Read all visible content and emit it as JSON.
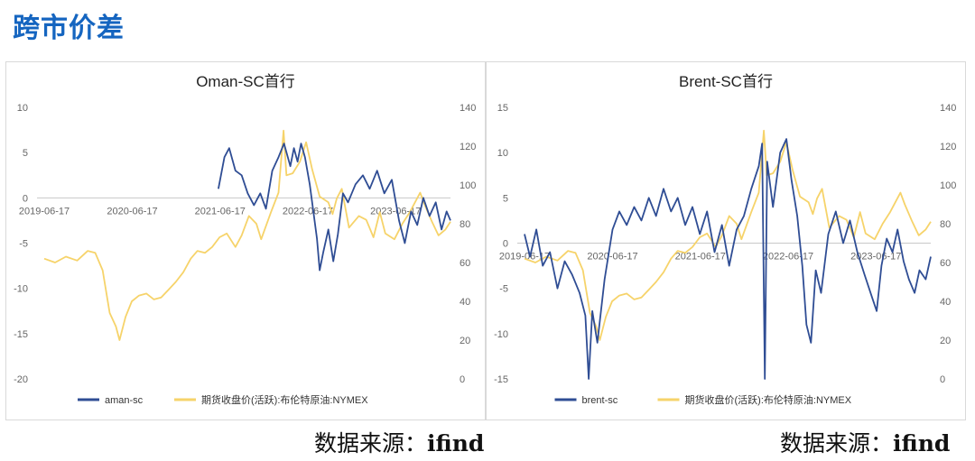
{
  "page": {
    "title": "跨市价差"
  },
  "source": {
    "label": "数据来源：",
    "value": "ifind"
  },
  "chart_data": [
    {
      "type": "line",
      "title": "Oman-SC首行",
      "left_axis": {
        "min": -20,
        "max": 10,
        "ticks": [
          "10",
          "5",
          "0",
          "-5",
          "-10",
          "-15",
          "-20"
        ]
      },
      "right_axis": {
        "min": 0,
        "max": 140,
        "ticks": [
          "140",
          "120",
          "100",
          "80",
          "60",
          "40",
          "20",
          "0"
        ]
      },
      "x_axis": {
        "start": "2019-06-17",
        "end": "2024-01-31",
        "ticks": [
          "2019-06-17",
          "2020-06-17",
          "2021-06-17",
          "2022-06-17",
          "2023-06-17"
        ]
      },
      "series": [
        {
          "name": "aman-sc",
          "axis": "left",
          "color": "#2f4d94",
          "points": [
            [
              "2021-06-10",
              1.0
            ],
            [
              "2021-07-05",
              4.5
            ],
            [
              "2021-07-25",
              5.5
            ],
            [
              "2021-08-20",
              3.0
            ],
            [
              "2021-09-15",
              2.5
            ],
            [
              "2021-10-10",
              0.5
            ],
            [
              "2021-11-05",
              -0.8
            ],
            [
              "2021-12-01",
              0.5
            ],
            [
              "2021-12-25",
              -1.2
            ],
            [
              "2022-01-20",
              3.0
            ],
            [
              "2022-02-15",
              4.5
            ],
            [
              "2022-03-10",
              6.0
            ],
            [
              "2022-04-05",
              3.5
            ],
            [
              "2022-04-20",
              5.5
            ],
            [
              "2022-05-05",
              4.0
            ],
            [
              "2022-05-20",
              6.0
            ],
            [
              "2022-06-05",
              4.5
            ],
            [
              "2022-06-25",
              1.5
            ],
            [
              "2022-07-10",
              -1.5
            ],
            [
              "2022-07-25",
              -4.5
            ],
            [
              "2022-08-05",
              -8.0
            ],
            [
              "2022-08-20",
              -6.0
            ],
            [
              "2022-09-10",
              -3.5
            ],
            [
              "2022-10-01",
              -7.0
            ],
            [
              "2022-10-20",
              -4.0
            ],
            [
              "2022-11-10",
              0.5
            ],
            [
              "2022-12-01",
              -0.5
            ],
            [
              "2023-01-01",
              1.5
            ],
            [
              "2023-02-01",
              2.5
            ],
            [
              "2023-03-01",
              1.0
            ],
            [
              "2023-04-01",
              3.0
            ],
            [
              "2023-05-01",
              0.5
            ],
            [
              "2023-06-01",
              2.0
            ],
            [
              "2023-07-01",
              -2.5
            ],
            [
              "2023-07-25",
              -5.0
            ],
            [
              "2023-08-20",
              -1.5
            ],
            [
              "2023-09-15",
              -3.0
            ],
            [
              "2023-10-10",
              0.0
            ],
            [
              "2023-11-05",
              -2.0
            ],
            [
              "2023-12-01",
              -0.5
            ],
            [
              "2023-12-25",
              -3.5
            ],
            [
              "2024-01-15",
              -1.5
            ],
            [
              "2024-01-31",
              -2.5
            ]
          ]
        },
        {
          "name": "期货收盘价(活跃):布伦特原油:NYMEX",
          "axis": "right",
          "color": "#f6d36a",
          "points": [
            [
              "2019-06-17",
              62
            ],
            [
              "2019-08-01",
              60
            ],
            [
              "2019-09-15",
              63
            ],
            [
              "2019-11-01",
              61
            ],
            [
              "2019-12-15",
              66
            ],
            [
              "2020-01-15",
              65
            ],
            [
              "2020-02-15",
              56
            ],
            [
              "2020-03-15",
              34
            ],
            [
              "2020-04-10",
              27
            ],
            [
              "2020-04-25",
              20
            ],
            [
              "2020-05-20",
              32
            ],
            [
              "2020-06-15",
              40
            ],
            [
              "2020-07-15",
              43
            ],
            [
              "2020-08-15",
              44
            ],
            [
              "2020-09-15",
              41
            ],
            [
              "2020-10-15",
              42
            ],
            [
              "2020-11-15",
              46
            ],
            [
              "2020-12-15",
              50
            ],
            [
              "2021-01-15",
              55
            ],
            [
              "2021-02-15",
              62
            ],
            [
              "2021-03-15",
              66
            ],
            [
              "2021-04-15",
              65
            ],
            [
              "2021-05-15",
              68
            ],
            [
              "2021-06-15",
              73
            ],
            [
              "2021-07-15",
              75
            ],
            [
              "2021-08-20",
              68
            ],
            [
              "2021-09-15",
              74
            ],
            [
              "2021-10-15",
              84
            ],
            [
              "2021-11-15",
              80
            ],
            [
              "2021-12-05",
              72
            ],
            [
              "2022-01-15",
              86
            ],
            [
              "2022-02-15",
              96
            ],
            [
              "2022-03-08",
              128
            ],
            [
              "2022-03-20",
              105
            ],
            [
              "2022-04-15",
              106
            ],
            [
              "2022-05-15",
              112
            ],
            [
              "2022-06-10",
              122
            ],
            [
              "2022-07-05",
              108
            ],
            [
              "2022-08-05",
              94
            ],
            [
              "2022-09-10",
              91
            ],
            [
              "2022-09-28",
              85
            ],
            [
              "2022-10-15",
              93
            ],
            [
              "2022-11-05",
              98
            ],
            [
              "2022-12-05",
              78
            ],
            [
              "2023-01-15",
              84
            ],
            [
              "2023-02-15",
              82
            ],
            [
              "2023-03-17",
              73
            ],
            [
              "2023-04-12",
              86
            ],
            [
              "2023-05-05",
              75
            ],
            [
              "2023-06-12",
              72
            ],
            [
              "2023-07-15",
              80
            ],
            [
              "2023-08-15",
              86
            ],
            [
              "2023-09-27",
              96
            ],
            [
              "2023-10-15",
              90
            ],
            [
              "2023-11-15",
              81
            ],
            [
              "2023-12-12",
              74
            ],
            [
              "2024-01-10",
              77
            ],
            [
              "2024-01-31",
              81
            ]
          ]
        }
      ],
      "legend": "bottom"
    },
    {
      "type": "line",
      "title": "Brent-SC首行",
      "left_axis": {
        "min": -15,
        "max": 15,
        "ticks": [
          "15",
          "10",
          "5",
          "0",
          "-5",
          "-10",
          "-15"
        ]
      },
      "right_axis": {
        "min": 0,
        "max": 140,
        "ticks": [
          "140",
          "120",
          "100",
          "80",
          "60",
          "40",
          "20",
          "0"
        ]
      },
      "x_axis": {
        "start": "2019-06-17",
        "end": "2024-01-31",
        "ticks": [
          "2019-06-17",
          "2020-06-17",
          "2021-06-17",
          "2022-06-17",
          "2023-06-17"
        ]
      },
      "series": [
        {
          "name": "brent-sc",
          "axis": "left",
          "color": "#2f4d94",
          "points": [
            [
              "2019-06-17",
              1.0
            ],
            [
              "2019-07-10",
              -1.5
            ],
            [
              "2019-08-05",
              1.5
            ],
            [
              "2019-09-01",
              -2.5
            ],
            [
              "2019-10-01",
              -1.0
            ],
            [
              "2019-11-01",
              -5.0
            ],
            [
              "2019-12-01",
              -2.0
            ],
            [
              "2020-01-01",
              -3.5
            ],
            [
              "2020-02-01",
              -5.5
            ],
            [
              "2020-02-25",
              -8.0
            ],
            [
              "2020-03-10",
              -15.0
            ],
            [
              "2020-03-25",
              -7.5
            ],
            [
              "2020-04-15",
              -11.0
            ],
            [
              "2020-05-15",
              -4.0
            ],
            [
              "2020-06-17",
              1.5
            ],
            [
              "2020-07-15",
              3.5
            ],
            [
              "2020-08-15",
              2.0
            ],
            [
              "2020-09-15",
              4.0
            ],
            [
              "2020-10-15",
              2.5
            ],
            [
              "2020-11-15",
              5.0
            ],
            [
              "2020-12-15",
              3.0
            ],
            [
              "2021-01-15",
              6.0
            ],
            [
              "2021-02-15",
              3.5
            ],
            [
              "2021-03-15",
              5.0
            ],
            [
              "2021-04-15",
              2.0
            ],
            [
              "2021-05-15",
              4.0
            ],
            [
              "2021-06-15",
              1.0
            ],
            [
              "2021-07-15",
              3.5
            ],
            [
              "2021-08-15",
              -1.0
            ],
            [
              "2021-09-15",
              2.0
            ],
            [
              "2021-10-15",
              -2.5
            ],
            [
              "2021-11-15",
              1.5
            ],
            [
              "2021-12-15",
              3.0
            ],
            [
              "2022-01-15",
              6.0
            ],
            [
              "2022-02-15",
              8.5
            ],
            [
              "2022-03-01",
              11.0
            ],
            [
              "2022-03-12",
              -15.0
            ],
            [
              "2022-03-22",
              9.0
            ],
            [
              "2022-04-15",
              4.0
            ],
            [
              "2022-05-15",
              10.0
            ],
            [
              "2022-06-10",
              11.5
            ],
            [
              "2022-07-01",
              7.0
            ],
            [
              "2022-07-25",
              3.0
            ],
            [
              "2022-08-15",
              -2.5
            ],
            [
              "2022-09-01",
              -9.0
            ],
            [
              "2022-09-20",
              -11.0
            ],
            [
              "2022-10-10",
              -3.0
            ],
            [
              "2022-11-01",
              -5.5
            ],
            [
              "2022-12-01",
              1.0
            ],
            [
              "2023-01-01",
              3.5
            ],
            [
              "2023-02-01",
              0.0
            ],
            [
              "2023-03-01",
              2.5
            ],
            [
              "2023-04-01",
              -1.0
            ],
            [
              "2023-05-01",
              -3.5
            ],
            [
              "2023-06-01",
              -6.0
            ],
            [
              "2023-06-20",
              -7.5
            ],
            [
              "2023-07-10",
              -2.5
            ],
            [
              "2023-08-01",
              0.5
            ],
            [
              "2023-08-25",
              -1.0
            ],
            [
              "2023-09-15",
              1.5
            ],
            [
              "2023-10-10",
              -2.0
            ],
            [
              "2023-11-01",
              -4.0
            ],
            [
              "2023-11-25",
              -5.5
            ],
            [
              "2023-12-15",
              -3.0
            ],
            [
              "2024-01-10",
              -4.0
            ],
            [
              "2024-01-31",
              -1.5
            ]
          ]
        },
        {
          "name": "期货收盘价(活跃):布伦特原油:NYMEX",
          "axis": "right",
          "color": "#f6d36a",
          "points": [
            [
              "2019-06-17",
              62
            ],
            [
              "2019-08-01",
              60
            ],
            [
              "2019-09-15",
              63
            ],
            [
              "2019-11-01",
              61
            ],
            [
              "2019-12-15",
              66
            ],
            [
              "2020-01-15",
              65
            ],
            [
              "2020-02-15",
              56
            ],
            [
              "2020-03-15",
              34
            ],
            [
              "2020-04-10",
              27
            ],
            [
              "2020-04-25",
              20
            ],
            [
              "2020-05-20",
              32
            ],
            [
              "2020-06-15",
              40
            ],
            [
              "2020-07-15",
              43
            ],
            [
              "2020-08-15",
              44
            ],
            [
              "2020-09-15",
              41
            ],
            [
              "2020-10-15",
              42
            ],
            [
              "2020-11-15",
              46
            ],
            [
              "2020-12-15",
              50
            ],
            [
              "2021-01-15",
              55
            ],
            [
              "2021-02-15",
              62
            ],
            [
              "2021-03-15",
              66
            ],
            [
              "2021-04-15",
              65
            ],
            [
              "2021-05-15",
              68
            ],
            [
              "2021-06-15",
              73
            ],
            [
              "2021-07-15",
              75
            ],
            [
              "2021-08-20",
              68
            ],
            [
              "2021-09-15",
              74
            ],
            [
              "2021-10-15",
              84
            ],
            [
              "2021-11-15",
              80
            ],
            [
              "2021-12-05",
              72
            ],
            [
              "2022-01-15",
              86
            ],
            [
              "2022-02-15",
              96
            ],
            [
              "2022-03-08",
              128
            ],
            [
              "2022-03-20",
              105
            ],
            [
              "2022-04-15",
              106
            ],
            [
              "2022-05-15",
              112
            ],
            [
              "2022-06-10",
              122
            ],
            [
              "2022-07-05",
              108
            ],
            [
              "2022-08-05",
              94
            ],
            [
              "2022-09-10",
              91
            ],
            [
              "2022-09-28",
              85
            ],
            [
              "2022-10-15",
              93
            ],
            [
              "2022-11-05",
              98
            ],
            [
              "2022-12-05",
              78
            ],
            [
              "2023-01-15",
              84
            ],
            [
              "2023-02-15",
              82
            ],
            [
              "2023-03-17",
              73
            ],
            [
              "2023-04-12",
              86
            ],
            [
              "2023-05-05",
              75
            ],
            [
              "2023-06-12",
              72
            ],
            [
              "2023-07-15",
              80
            ],
            [
              "2023-08-15",
              86
            ],
            [
              "2023-09-27",
              96
            ],
            [
              "2023-10-15",
              90
            ],
            [
              "2023-11-15",
              81
            ],
            [
              "2023-12-12",
              74
            ],
            [
              "2024-01-10",
              77
            ],
            [
              "2024-01-31",
              81
            ]
          ]
        }
      ],
      "legend": "bottom"
    }
  ]
}
